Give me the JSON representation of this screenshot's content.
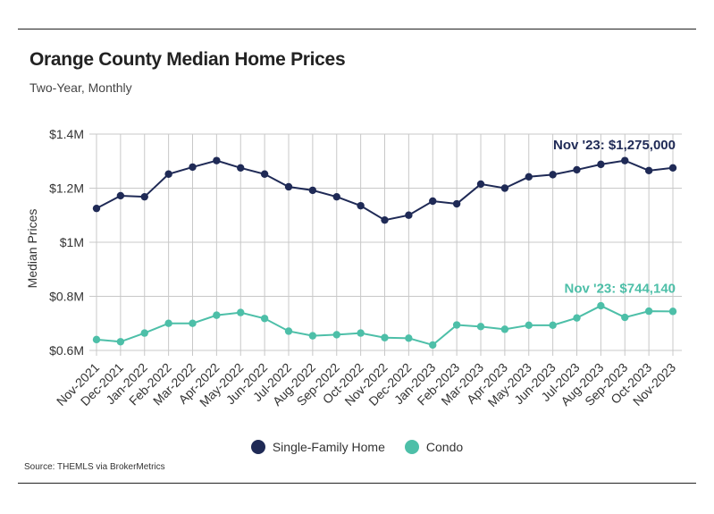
{
  "header": {
    "title": "Orange County Median Home Prices",
    "subtitle": "Two-Year, Monthly"
  },
  "footer": {
    "source": "Source:  THEMLS via BrokerMetrics"
  },
  "colors": {
    "single_family": "#1f2a56",
    "condo": "#4dbfa8"
  },
  "chart_data": {
    "type": "line",
    "ylabel": "Median Prices",
    "ylim": [
      580000,
      1400000
    ],
    "y_ticks": [
      600000,
      800000,
      1000000,
      1200000,
      1400000
    ],
    "y_tick_labels": [
      "$0.6M",
      "$0.8M",
      "$1M",
      "$1.2M",
      "$1.4M"
    ],
    "grid": true,
    "legend": "bottom",
    "categories": [
      "Nov-2021",
      "Dec-2021",
      "Jan-2022",
      "Feb-2022",
      "Mar-2022",
      "Apr-2022",
      "May-2022",
      "Jun-2022",
      "Jul-2022",
      "Aug-2022",
      "Sep-2022",
      "Oct-2022",
      "Nov-2022",
      "Dec-2022",
      "Jan-2023",
      "Feb-2023",
      "Mar-2023",
      "Apr-2023",
      "May-2023",
      "Jun-2023",
      "Jul-2023",
      "Aug-2023",
      "Sep-2023",
      "Oct-2023",
      "Nov-2023"
    ],
    "series": [
      {
        "name": "Single-Family Home",
        "color": "#1f2a56",
        "values": [
          1125000,
          1172000,
          1168000,
          1252000,
          1278000,
          1302000,
          1275000,
          1252000,
          1205000,
          1192000,
          1168000,
          1135000,
          1082000,
          1100000,
          1152000,
          1142000,
          1215000,
          1200000,
          1242000,
          1250000,
          1268000,
          1288000,
          1302000,
          1265000,
          1275000
        ],
        "annotation": "Nov '23: $1,275,000"
      },
      {
        "name": "Condo",
        "color": "#4dbfa8",
        "values": [
          640000,
          632000,
          664000,
          700000,
          700000,
          730000,
          740000,
          718000,
          671000,
          654000,
          658000,
          664000,
          647000,
          645000,
          620000,
          694000,
          688000,
          678000,
          693000,
          693000,
          720000,
          765000,
          722000,
          745000,
          744140
        ],
        "annotation": "Nov '23: $744,140"
      }
    ]
  }
}
